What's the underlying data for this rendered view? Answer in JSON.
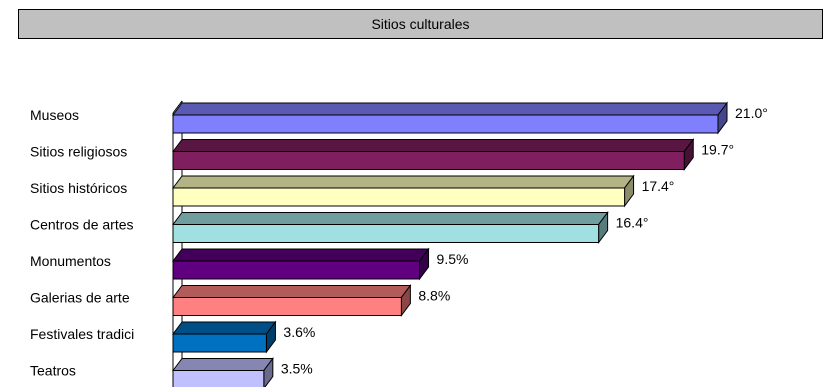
{
  "title": "Sitios culturales",
  "chart_data": {
    "type": "bar",
    "orientation": "horizontal",
    "style": "3d",
    "title": "Sitios culturales",
    "categories": [
      "Museos",
      "Sitios religiosos",
      "Sitios históricos",
      "Centros de artes",
      "Monumentos",
      "Galerias de arte",
      "Festivales tradici",
      "Teatros"
    ],
    "values": [
      21.0,
      19.7,
      17.4,
      16.4,
      9.5,
      8.8,
      3.6,
      3.5
    ],
    "value_labels": [
      "21.0%",
      "19.7%",
      "17.4%",
      "16.4%",
      "9.5%",
      "8.8%",
      "3.6%",
      "3.5%"
    ],
    "value_labels_clipped": [
      "21.0°",
      "19.7°",
      "17.4°",
      "16.4°"
    ],
    "colors": [
      "#8080ff",
      "#7f1f5f",
      "#ffffc0",
      "#a0e0e0",
      "#600080",
      "#ff8080",
      "#0070c0",
      "#c0c0ff"
    ],
    "xlim": [
      0,
      21.0
    ],
    "grid": false,
    "legend": "none"
  }
}
